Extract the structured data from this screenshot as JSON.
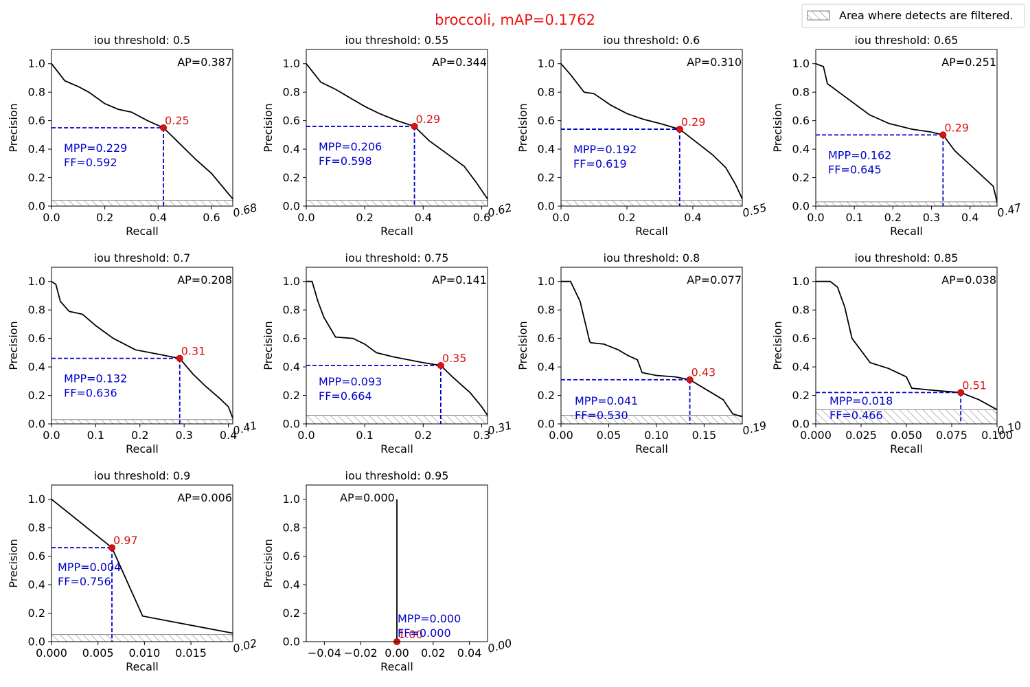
{
  "title": "broccoli, mAP=0.1762",
  "legend_label": "Area where detects are filtered.",
  "colors": {
    "title": "#ee1111",
    "curve": "#000000",
    "guide": "#0000cc",
    "marker": "#dd1111",
    "hatch": "#888888"
  },
  "chart_data": [
    {
      "type": "line",
      "title": "iou threshold: 0.5",
      "xlabel": "Recall",
      "ylabel": "Precision",
      "xlim": [
        0,
        0.68
      ],
      "ylim": [
        0,
        1.1
      ],
      "xticks": [
        "0.0",
        "0.2",
        "0.4",
        "0.6"
      ],
      "xtick_values": [
        0,
        0.2,
        0.4,
        0.6
      ],
      "yticks": [
        "0.0",
        "0.2",
        "0.4",
        "0.6",
        "0.8",
        "1.0"
      ],
      "max_recall_label": "0.68",
      "ap_label": "AP=0.387",
      "ap_position": "top-right",
      "mpp_label": "MPP=0.229",
      "ff_label": "FF=0.592",
      "point_label": "0.25",
      "operating_point": [
        0.42,
        0.55
      ],
      "filtered_below": 0.04,
      "x": [
        0,
        0.05,
        0.1,
        0.14,
        0.2,
        0.25,
        0.3,
        0.36,
        0.42,
        0.48,
        0.54,
        0.6,
        0.64,
        0.68
      ],
      "y": [
        1.0,
        0.88,
        0.84,
        0.8,
        0.72,
        0.68,
        0.66,
        0.6,
        0.55,
        0.44,
        0.33,
        0.23,
        0.14,
        0.05
      ]
    },
    {
      "type": "line",
      "title": "iou threshold: 0.55",
      "xlabel": "Recall",
      "ylabel": "Precision",
      "xlim": [
        0,
        0.62
      ],
      "ylim": [
        0,
        1.1
      ],
      "xticks": [
        "0.0",
        "0.2",
        "0.4",
        "0.6"
      ],
      "xtick_values": [
        0,
        0.2,
        0.4,
        0.6
      ],
      "yticks": [
        "0.0",
        "0.2",
        "0.4",
        "0.6",
        "0.8",
        "1.0"
      ],
      "max_recall_label": "0.62",
      "ap_label": "AP=0.344",
      "ap_position": "top-right",
      "mpp_label": "MPP=0.206",
      "ff_label": "FF=0.598",
      "point_label": "0.29",
      "operating_point": [
        0.37,
        0.56
      ],
      "filtered_below": 0.04,
      "x": [
        0,
        0.05,
        0.1,
        0.15,
        0.2,
        0.25,
        0.31,
        0.37,
        0.42,
        0.48,
        0.54,
        0.58,
        0.62
      ],
      "y": [
        1.0,
        0.87,
        0.82,
        0.76,
        0.7,
        0.65,
        0.6,
        0.56,
        0.46,
        0.37,
        0.28,
        0.17,
        0.05
      ]
    },
    {
      "type": "line",
      "title": "iou threshold: 0.6",
      "xlabel": "Recall",
      "ylabel": "Precision",
      "xlim": [
        0,
        0.55
      ],
      "ylim": [
        0,
        1.1
      ],
      "xticks": [
        "0.0",
        "0.2",
        "0.4"
      ],
      "xtick_values": [
        0,
        0.2,
        0.4
      ],
      "yticks": [
        "0.0",
        "0.2",
        "0.4",
        "0.6",
        "0.8",
        "1.0"
      ],
      "max_recall_label": "0.55",
      "ap_label": "AP=0.310",
      "ap_position": "top-right",
      "mpp_label": "MPP=0.192",
      "ff_label": "FF=0.619",
      "point_label": "0.29",
      "operating_point": [
        0.36,
        0.54
      ],
      "filtered_below": 0.04,
      "x": [
        0,
        0.03,
        0.07,
        0.1,
        0.15,
        0.2,
        0.25,
        0.3,
        0.36,
        0.41,
        0.46,
        0.5,
        0.53,
        0.55
      ],
      "y": [
        1.0,
        0.92,
        0.8,
        0.79,
        0.71,
        0.65,
        0.61,
        0.58,
        0.54,
        0.45,
        0.36,
        0.27,
        0.15,
        0.05
      ]
    },
    {
      "type": "line",
      "title": "iou threshold: 0.65",
      "xlabel": "Recall",
      "ylabel": "Precision",
      "xlim": [
        0,
        0.47
      ],
      "ylim": [
        0,
        1.1
      ],
      "xticks": [
        "0.0",
        "0.1",
        "0.2",
        "0.3",
        "0.4"
      ],
      "xtick_values": [
        0,
        0.1,
        0.2,
        0.3,
        0.4
      ],
      "yticks": [
        "0.0",
        "0.2",
        "0.4",
        "0.6",
        "0.8",
        "1.0"
      ],
      "max_recall_label": "0.47",
      "ap_label": "AP=0.251",
      "ap_position": "top-right",
      "mpp_label": "MPP=0.162",
      "ff_label": "FF=0.645",
      "point_label": "0.29",
      "operating_point": [
        0.33,
        0.5
      ],
      "filtered_below": 0.03,
      "x": [
        0,
        0.02,
        0.03,
        0.06,
        0.1,
        0.14,
        0.19,
        0.25,
        0.3,
        0.33,
        0.36,
        0.4,
        0.44,
        0.46,
        0.47
      ],
      "y": [
        1.0,
        0.98,
        0.86,
        0.8,
        0.72,
        0.64,
        0.58,
        0.54,
        0.52,
        0.5,
        0.39,
        0.29,
        0.19,
        0.14,
        0.03
      ]
    },
    {
      "type": "line",
      "title": "iou threshold: 0.7",
      "xlabel": "Recall",
      "ylabel": "Precision",
      "xlim": [
        0,
        0.41
      ],
      "ylim": [
        0,
        1.1
      ],
      "xticks": [
        "0.0",
        "0.1",
        "0.2",
        "0.3",
        "0.4"
      ],
      "xtick_values": [
        0,
        0.1,
        0.2,
        0.3,
        0.4
      ],
      "yticks": [
        "0.0",
        "0.2",
        "0.4",
        "0.6",
        "0.8",
        "1.0"
      ],
      "max_recall_label": "0.41",
      "ap_label": "AP=0.208",
      "ap_position": "top-right",
      "mpp_label": "MPP=0.132",
      "ff_label": "FF=0.636",
      "point_label": "0.31",
      "operating_point": [
        0.29,
        0.46
      ],
      "filtered_below": 0.03,
      "x": [
        0,
        0.01,
        0.02,
        0.04,
        0.07,
        0.1,
        0.14,
        0.19,
        0.24,
        0.29,
        0.32,
        0.35,
        0.38,
        0.4,
        0.41
      ],
      "y": [
        1.0,
        0.98,
        0.86,
        0.79,
        0.77,
        0.69,
        0.6,
        0.52,
        0.49,
        0.46,
        0.35,
        0.26,
        0.18,
        0.12,
        0.04
      ]
    },
    {
      "type": "line",
      "title": "iou threshold: 0.75",
      "xlabel": "Recall",
      "ylabel": "Precision",
      "xlim": [
        0,
        0.31
      ],
      "ylim": [
        0,
        1.1
      ],
      "xticks": [
        "0.0",
        "0.1",
        "0.2",
        "0.3"
      ],
      "xtick_values": [
        0,
        0.1,
        0.2,
        0.3
      ],
      "yticks": [
        "0.0",
        "0.2",
        "0.4",
        "0.6",
        "0.8",
        "1.0"
      ],
      "max_recall_label": "0.31",
      "ap_label": "AP=0.141",
      "ap_position": "top-right",
      "mpp_label": "MPP=0.093",
      "ff_label": "FF=0.664",
      "point_label": "0.35",
      "operating_point": [
        0.23,
        0.41
      ],
      "filtered_below": 0.06,
      "x": [
        0,
        0.01,
        0.02,
        0.03,
        0.05,
        0.08,
        0.1,
        0.12,
        0.15,
        0.2,
        0.23,
        0.25,
        0.28,
        0.3,
        0.31
      ],
      "y": [
        1.0,
        1.0,
        0.86,
        0.75,
        0.61,
        0.6,
        0.56,
        0.5,
        0.47,
        0.43,
        0.41,
        0.33,
        0.22,
        0.12,
        0.06
      ]
    },
    {
      "type": "line",
      "title": "iou threshold: 0.8",
      "xlabel": "Recall",
      "ylabel": "Precision",
      "xlim": [
        0,
        0.19
      ],
      "ylim": [
        0,
        1.1
      ],
      "xticks": [
        "0.00",
        "0.05",
        "0.10",
        "0.15"
      ],
      "xtick_values": [
        0,
        0.05,
        0.1,
        0.15
      ],
      "yticks": [
        "0.0",
        "0.2",
        "0.4",
        "0.6",
        "0.8",
        "1.0"
      ],
      "max_recall_label": "0.19",
      "ap_label": "AP=0.077",
      "ap_position": "top-right",
      "mpp_label": "MPP=0.041",
      "ff_label": "FF=0.530",
      "point_label": "0.43",
      "operating_point": [
        0.135,
        0.31
      ],
      "filtered_below": 0.06,
      "x": [
        0,
        0.01,
        0.02,
        0.03,
        0.031,
        0.045,
        0.06,
        0.07,
        0.08,
        0.085,
        0.1,
        0.12,
        0.135,
        0.15,
        0.17,
        0.18,
        0.19
      ],
      "y": [
        1.0,
        1.0,
        0.86,
        0.58,
        0.57,
        0.56,
        0.52,
        0.48,
        0.45,
        0.36,
        0.34,
        0.33,
        0.31,
        0.25,
        0.17,
        0.07,
        0.05
      ]
    },
    {
      "type": "line",
      "title": "iou threshold: 0.85",
      "xlabel": "Recall",
      "ylabel": "Precision",
      "xlim": [
        0,
        0.1
      ],
      "ylim": [
        0,
        1.1
      ],
      "xticks": [
        "0.000",
        "0.025",
        "0.050",
        "0.075",
        "0.100"
      ],
      "xtick_values": [
        0,
        0.025,
        0.05,
        0.075,
        0.1
      ],
      "yticks": [
        "0.0",
        "0.2",
        "0.4",
        "0.6",
        "0.8",
        "1.0"
      ],
      "max_recall_label": "0.10",
      "ap_label": "AP=0.038",
      "ap_position": "top-right",
      "mpp_label": "MPP=0.018",
      "ff_label": "FF=0.466",
      "point_label": "0.51",
      "operating_point": [
        0.08,
        0.22
      ],
      "filtered_below": 0.1,
      "x": [
        0,
        0.008,
        0.012,
        0.016,
        0.02,
        0.03,
        0.04,
        0.05,
        0.053,
        0.07,
        0.08,
        0.09,
        0.1
      ],
      "y": [
        1.0,
        1.0,
        0.96,
        0.82,
        0.6,
        0.43,
        0.39,
        0.33,
        0.25,
        0.23,
        0.22,
        0.17,
        0.1
      ]
    },
    {
      "type": "line",
      "title": "iou threshold: 0.9",
      "xlabel": "Recall",
      "ylabel": "Precision",
      "xlim": [
        0,
        0.0195
      ],
      "ylim": [
        0,
        1.1
      ],
      "xticks": [
        "0.000",
        "0.005",
        "0.010",
        "0.015"
      ],
      "xtick_values": [
        0,
        0.005,
        0.01,
        0.015
      ],
      "yticks": [
        "0.0",
        "0.2",
        "0.4",
        "0.6",
        "0.8",
        "1.0"
      ],
      "max_recall_label": "0.02",
      "ap_label": "AP=0.006",
      "ap_position": "top-right",
      "mpp_label": "MPP=0.004",
      "ff_label": "FF=0.756",
      "point_label": "0.97",
      "operating_point": [
        0.0065,
        0.66
      ],
      "filtered_below": 0.05,
      "x": [
        0,
        0.0065,
        0.0098,
        0.013,
        0.0195
      ],
      "y": [
        1.0,
        0.66,
        0.18,
        0.14,
        0.06
      ]
    },
    {
      "type": "line",
      "title": "iou threshold: 0.95",
      "xlabel": "Recall",
      "ylabel": "Precision",
      "xlim": [
        -0.05,
        0.05
      ],
      "ylim": [
        0,
        1.1
      ],
      "xticks": [
        "−0.04",
        "−0.02",
        "0.00",
        "0.02",
        "0.04"
      ],
      "xtick_values": [
        -0.04,
        -0.02,
        0,
        0.02,
        0.04
      ],
      "yticks": [
        "0.0",
        "0.2",
        "0.4",
        "0.6",
        "0.8",
        "1.0"
      ],
      "max_recall_label": "0.00",
      "ap_label": "AP=0.000",
      "ap_position": "top-center",
      "mpp_label": "MPP=0.000",
      "ff_label": "FF=0.000",
      "point_label": "1.00",
      "operating_point": [
        0,
        0
      ],
      "filtered_below": 0,
      "x": [
        0,
        0
      ],
      "y": [
        0,
        1.0
      ]
    }
  ]
}
